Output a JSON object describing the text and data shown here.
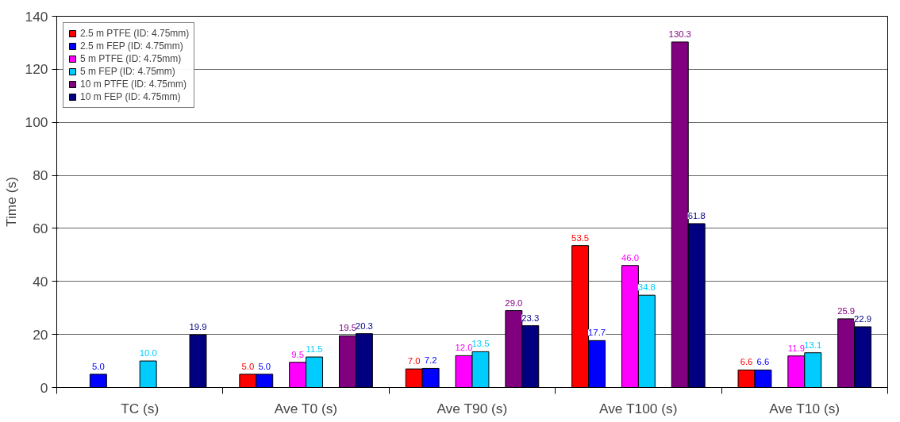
{
  "chart_data": {
    "type": "bar",
    "ylabel": "Time (s)",
    "categories": [
      "TC (s)",
      "Ave T0 (s)",
      "Ave T90 (s)",
      "Ave T100 (s)",
      "Ave T10 (s)"
    ],
    "series": [
      {
        "name": "2.5 m PTFE (ID: 4.75mm)",
        "color": "#ff0000",
        "values": [
          null,
          5.0,
          7.0,
          53.5,
          6.6
        ],
        "value_labels": [
          null,
          "5.0",
          "7.0",
          "53.5",
          "6.6"
        ]
      },
      {
        "name": "2.5 m FEP (ID: 4.75mm)",
        "color": "#0000ff",
        "values": [
          5.0,
          5.0,
          7.2,
          17.7,
          6.6
        ],
        "value_labels": [
          "5.0",
          "5.0",
          "7.2",
          "17.7",
          "6.6"
        ]
      },
      {
        "name": "5 m PTFE (ID: 4.75mm)",
        "color": "#ff00ff",
        "values": [
          null,
          9.5,
          12.0,
          46.0,
          11.9
        ],
        "value_labels": [
          null,
          "9.5",
          "12.0",
          "46.0",
          "11.9"
        ]
      },
      {
        "name": "5 m FEP (ID: 4.75mm)",
        "color": "#00ccff",
        "values": [
          10.0,
          11.5,
          13.5,
          34.8,
          13.1
        ],
        "value_labels": [
          "10.0",
          "11.5",
          "13.5",
          "34.8",
          "13.1"
        ]
      },
      {
        "name": "10 m PTFE (ID: 4.75mm)",
        "color": "#800080",
        "values": [
          null,
          19.5,
          29.0,
          130.3,
          25.9
        ],
        "value_labels": [
          null,
          "19.5",
          "29.0",
          "130.3",
          "25.9"
        ]
      },
      {
        "name": "10 m FEP (ID: 4.75mm)",
        "color": "#000080",
        "values": [
          19.9,
          20.3,
          23.3,
          61.8,
          22.9
        ],
        "value_labels": [
          "19.9",
          "20.3",
          "23.3",
          "61.8",
          "22.9"
        ]
      }
    ],
    "ylim": [
      0,
      140
    ],
    "yticks": [
      0,
      20,
      40,
      60,
      80,
      100,
      120,
      140
    ],
    "grid": "y",
    "legend": "top left"
  }
}
